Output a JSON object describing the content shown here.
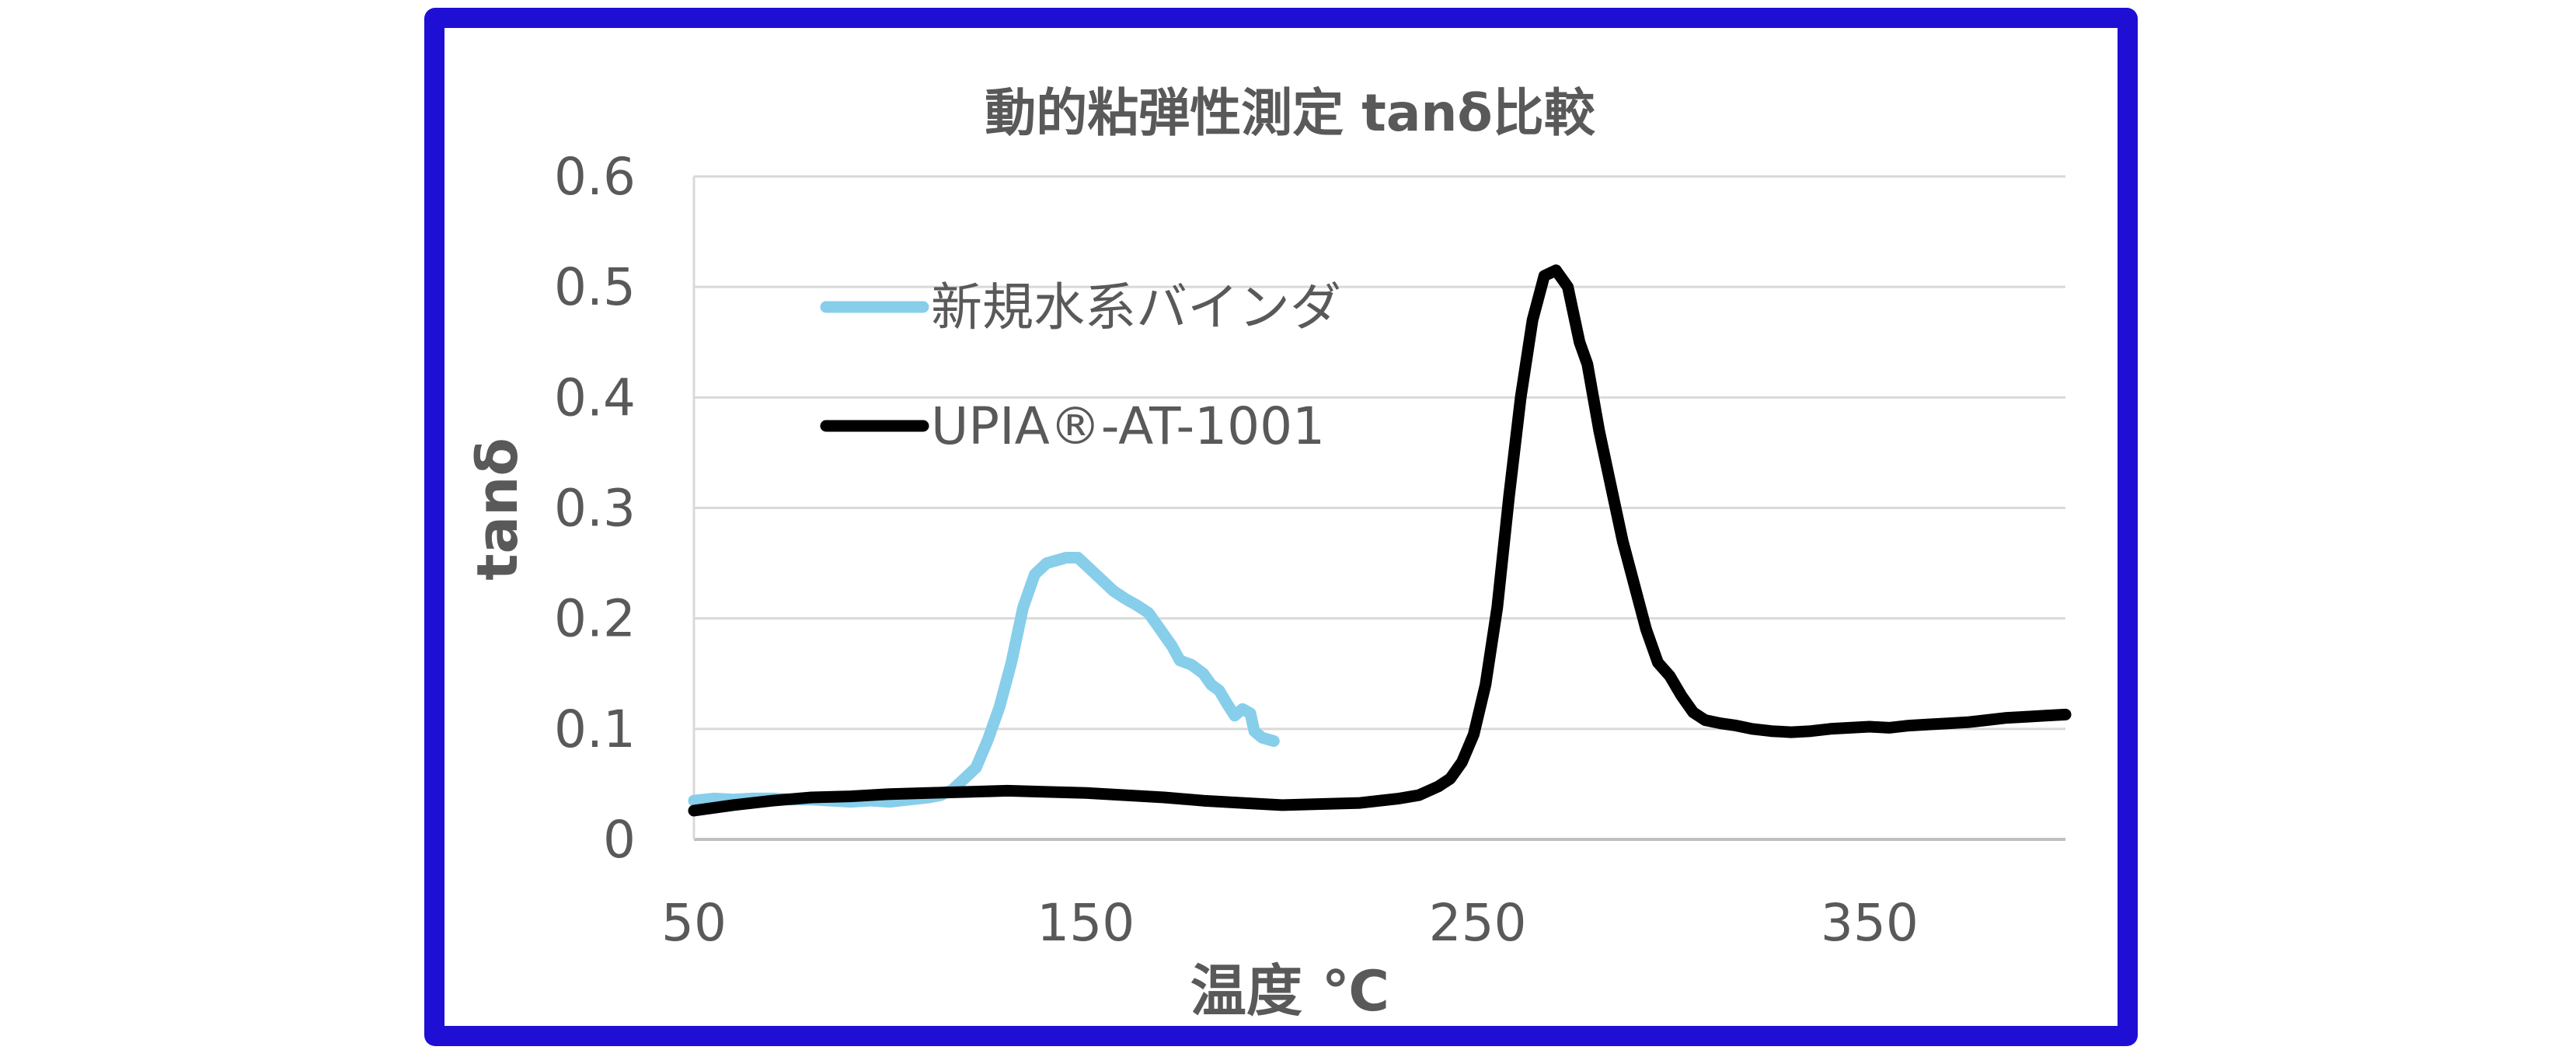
{
  "chart_data": {
    "type": "line",
    "title": "動的粘弾性測定 tanδ比較",
    "xlabel": "温度 ℃",
    "ylabel": "tanδ",
    "xlim": [
      50,
      400
    ],
    "ylim": [
      0,
      0.6
    ],
    "x_ticks": [
      "50",
      "150",
      "250",
      "350"
    ],
    "y_ticks": [
      "0",
      "0.1",
      "0.2",
      "0.3",
      "0.4",
      "0.5",
      "0.6"
    ],
    "grid": true,
    "legend_position": "top-left",
    "series": [
      {
        "name": "新規水系バインダ",
        "color": "#87ceeb",
        "points": [
          [
            50,
            0.035
          ],
          [
            55,
            0.037
          ],
          [
            60,
            0.036
          ],
          [
            65,
            0.037
          ],
          [
            70,
            0.037
          ],
          [
            75,
            0.036
          ],
          [
            80,
            0.036
          ],
          [
            85,
            0.035
          ],
          [
            90,
            0.034
          ],
          [
            95,
            0.035
          ],
          [
            100,
            0.034
          ],
          [
            105,
            0.036
          ],
          [
            110,
            0.038
          ],
          [
            113,
            0.04
          ],
          [
            116,
            0.045
          ],
          [
            119,
            0.055
          ],
          [
            122,
            0.065
          ],
          [
            125,
            0.09
          ],
          [
            128,
            0.12
          ],
          [
            131,
            0.16
          ],
          [
            134,
            0.21
          ],
          [
            137,
            0.24
          ],
          [
            140,
            0.25
          ],
          [
            145,
            0.255
          ],
          [
            148,
            0.255
          ],
          [
            151,
            0.245
          ],
          [
            154,
            0.235
          ],
          [
            157,
            0.225
          ],
          [
            160,
            0.218
          ],
          [
            163,
            0.212
          ],
          [
            166,
            0.205
          ],
          [
            168,
            0.195
          ],
          [
            170,
            0.185
          ],
          [
            172,
            0.175
          ],
          [
            174,
            0.162
          ],
          [
            177,
            0.158
          ],
          [
            180,
            0.15
          ],
          [
            182,
            0.14
          ],
          [
            184,
            0.135
          ],
          [
            186,
            0.123
          ],
          [
            188,
            0.112
          ],
          [
            190,
            0.118
          ],
          [
            192,
            0.114
          ],
          [
            193,
            0.098
          ],
          [
            195,
            0.092
          ],
          [
            198,
            0.089
          ]
        ]
      },
      {
        "name": "UPIA®-AT-1001",
        "color": "#000000",
        "points": [
          [
            50,
            0.026
          ],
          [
            60,
            0.031
          ],
          [
            70,
            0.035
          ],
          [
            80,
            0.038
          ],
          [
            90,
            0.039
          ],
          [
            100,
            0.041
          ],
          [
            110,
            0.042
          ],
          [
            120,
            0.043
          ],
          [
            130,
            0.044
          ],
          [
            140,
            0.043
          ],
          [
            150,
            0.042
          ],
          [
            160,
            0.04
          ],
          [
            170,
            0.038
          ],
          [
            180,
            0.035
          ],
          [
            190,
            0.033
          ],
          [
            200,
            0.031
          ],
          [
            210,
            0.032
          ],
          [
            220,
            0.033
          ],
          [
            230,
            0.037
          ],
          [
            235,
            0.04
          ],
          [
            240,
            0.048
          ],
          [
            243,
            0.055
          ],
          [
            246,
            0.07
          ],
          [
            249,
            0.095
          ],
          [
            252,
            0.14
          ],
          [
            255,
            0.21
          ],
          [
            258,
            0.31
          ],
          [
            261,
            0.4
          ],
          [
            264,
            0.47
          ],
          [
            267,
            0.51
          ],
          [
            270,
            0.515
          ],
          [
            273,
            0.5
          ],
          [
            276,
            0.45
          ],
          [
            278,
            0.43
          ],
          [
            281,
            0.37
          ],
          [
            284,
            0.32
          ],
          [
            287,
            0.27
          ],
          [
            290,
            0.23
          ],
          [
            293,
            0.19
          ],
          [
            296,
            0.16
          ],
          [
            299,
            0.148
          ],
          [
            302,
            0.13
          ],
          [
            305,
            0.115
          ],
          [
            308,
            0.108
          ],
          [
            312,
            0.105
          ],
          [
            316,
            0.103
          ],
          [
            320,
            0.1
          ],
          [
            325,
            0.098
          ],
          [
            330,
            0.097
          ],
          [
            335,
            0.098
          ],
          [
            340,
            0.1
          ],
          [
            345,
            0.101
          ],
          [
            350,
            0.102
          ],
          [
            355,
            0.101
          ],
          [
            360,
            0.103
          ],
          [
            365,
            0.104
          ],
          [
            370,
            0.105
          ],
          [
            375,
            0.106
          ],
          [
            380,
            0.108
          ],
          [
            385,
            0.11
          ],
          [
            390,
            0.111
          ],
          [
            395,
            0.112
          ],
          [
            400,
            0.113
          ]
        ]
      }
    ]
  }
}
